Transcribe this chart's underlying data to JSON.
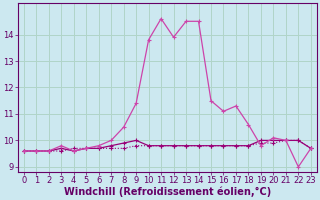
{
  "xlabel": "Windchill (Refroidissement éolien,°C)",
  "xlim": [
    -0.5,
    23.5
  ],
  "ylim": [
    8.8,
    15.2
  ],
  "yticks": [
    9,
    10,
    11,
    12,
    13,
    14
  ],
  "xticks": [
    0,
    1,
    2,
    3,
    4,
    5,
    6,
    7,
    8,
    9,
    10,
    11,
    12,
    13,
    14,
    15,
    16,
    17,
    18,
    19,
    20,
    21,
    22,
    23
  ],
  "background_color": "#cce8f0",
  "grid_color": "#b0d4c8",
  "line_color_dark": "#990077",
  "line_color_mid": "#cc44aa",
  "line_color_light": "#ff88cc",
  "series_flat": [
    9.6,
    9.6,
    9.6,
    9.6,
    9.7,
    9.7,
    9.7,
    9.7,
    9.7,
    9.8,
    9.8,
    9.8,
    9.8,
    9.8,
    9.8,
    9.8,
    9.8,
    9.8,
    9.8,
    9.9,
    9.9,
    10.0,
    10.0,
    9.7
  ],
  "series_main": [
    9.6,
    9.6,
    9.6,
    9.8,
    9.6,
    9.7,
    9.8,
    10.0,
    10.5,
    11.4,
    13.8,
    14.6,
    13.9,
    14.5,
    14.5,
    11.5,
    11.1,
    11.3,
    10.6,
    9.8,
    10.1,
    10.0,
    9.0,
    9.7
  ],
  "series_med": [
    9.6,
    9.6,
    9.6,
    9.7,
    9.6,
    9.7,
    9.7,
    9.8,
    9.9,
    10.0,
    9.8,
    9.8,
    9.8,
    9.8,
    9.8,
    9.8,
    9.8,
    9.8,
    9.8,
    10.0,
    10.0,
    10.0,
    10.0,
    9.7
  ],
  "font_color": "#660066",
  "tick_fontsize": 6,
  "xlabel_fontsize": 7
}
